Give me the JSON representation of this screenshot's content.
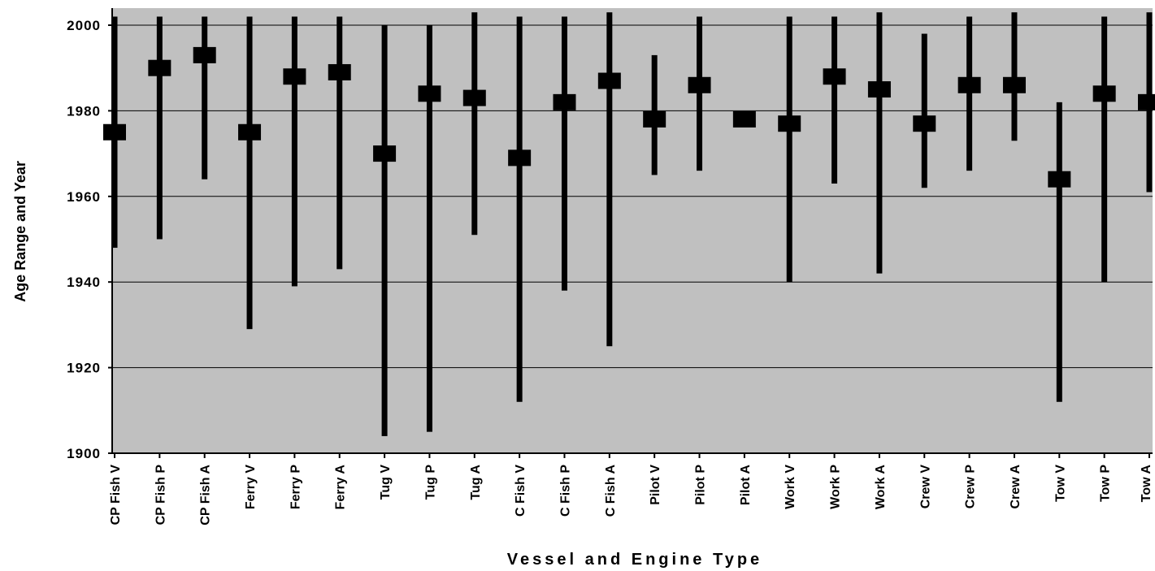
{
  "chart_data": {
    "type": "range",
    "xlabel": "Vessel and Engine Type",
    "ylabel": "Age Range and Year",
    "ylim": [
      1900,
      2000
    ],
    "yticks": [
      "1900",
      "1920",
      "1940",
      "1960",
      "1980",
      "2000"
    ],
    "grid": true,
    "background_color": "#c0c0c0",
    "mark_color": "#000000",
    "categories": [
      "CP Fish V",
      "CP Fish P",
      "CP Fish A",
      "Ferry V",
      "Ferry P",
      "Ferry A",
      "Tug V",
      "Tug P",
      "Tug A",
      "C Fish V",
      "C Fish P",
      "C Fish A",
      "Pilot V",
      "Pilot P",
      "Pilot A",
      "Work V",
      "Work P",
      "Work A",
      "Crew V",
      "Crew P",
      "Crew A",
      "Tow V",
      "Tow P",
      "Tow A"
    ],
    "series": [
      {
        "name": "",
        "role": "min",
        "values": [
          1948,
          1950,
          1964,
          1929,
          1939,
          1943,
          1904,
          1905,
          1951,
          1912,
          1938,
          1925,
          1965,
          1966,
          1978,
          1940,
          1963,
          1942,
          1962,
          1966,
          1973,
          1912,
          1940,
          1961
        ]
      },
      {
        "name": "",
        "role": "max",
        "values": [
          2002,
          2002,
          2002,
          2002,
          2002,
          2002,
          2000,
          2000,
          2003,
          2002,
          2002,
          2003,
          1993,
          2002,
          1978,
          2002,
          2002,
          2003,
          1998,
          2002,
          2003,
          1982,
          2002,
          2003
        ]
      },
      {
        "name": "",
        "role": "mean",
        "values": [
          1975,
          1990,
          1993,
          1975,
          1988,
          1989,
          1970,
          1984,
          1983,
          1969,
          1982,
          1987,
          1978,
          1986,
          1978,
          1977,
          1988,
          1985,
          1977,
          1986,
          1986,
          1964,
          1984,
          1982
        ]
      }
    ]
  }
}
